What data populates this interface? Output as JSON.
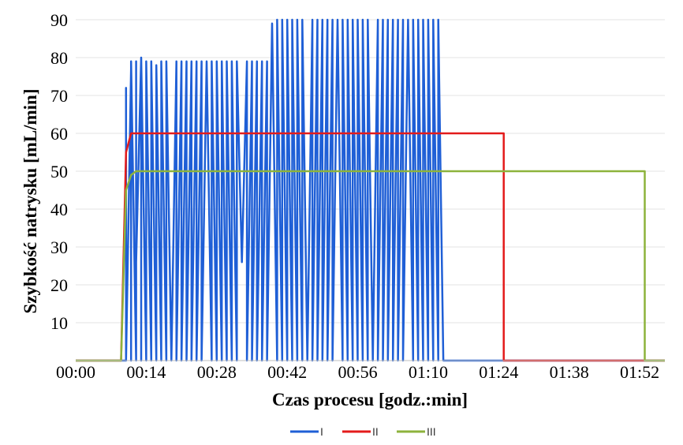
{
  "chart_data": {
    "type": "line",
    "title": "",
    "xlabel": "Czas procesu  [godz.:min]",
    "ylabel": "Szybkość natrysku  [mL/min]",
    "x_unit": "godz.:min",
    "xlim": [
      "00:00",
      "01:57"
    ],
    "ylim": [
      0,
      90
    ],
    "x_ticks": [
      "00:00",
      "00:14",
      "00:28",
      "00:42",
      "00:56",
      "01:10",
      "01:24",
      "01:38",
      "01:52"
    ],
    "y_ticks": [
      "10",
      "20",
      "30",
      "40",
      "50",
      "60",
      "70",
      "80",
      "90"
    ],
    "grid": true,
    "legend_position": "bottom",
    "series": [
      {
        "name": "I",
        "color": "#1f5fd6",
        "pattern": "pulsed",
        "start": "00:10",
        "stop": "01:13",
        "x": [
          "00:00",
          "00:10",
          "00:10",
          "00:10",
          "00:11",
          "00:11",
          "00:11",
          "00:12",
          "00:12",
          "00:12",
          "00:13",
          "00:13",
          "00:13",
          "00:14",
          "00:14",
          "00:15",
          "00:15",
          "00:16",
          "00:16",
          "00:17",
          "00:17",
          "00:18",
          "00:18",
          "00:19",
          "00:20",
          "00:20",
          "00:21",
          "00:21",
          "00:22",
          "00:22",
          "00:23",
          "00:23",
          "00:24",
          "00:24",
          "00:25",
          "00:25",
          "00:26",
          "00:27",
          "00:27",
          "00:28",
          "00:28",
          "00:29",
          "00:29",
          "00:30",
          "00:30",
          "00:31",
          "00:31",
          "00:32",
          "00:32",
          "00:33",
          "00:34",
          "00:34",
          "00:35",
          "00:35",
          "00:36",
          "00:36",
          "00:37",
          "00:37",
          "00:38",
          "00:38",
          "00:39",
          "00:40",
          "00:40",
          "00:41",
          "00:41",
          "00:42",
          "00:42",
          "00:43",
          "00:43",
          "00:44",
          "00:44",
          "00:45",
          "00:45",
          "00:46",
          "00:47",
          "00:47",
          "00:48",
          "00:48",
          "00:49",
          "00:49",
          "00:50",
          "00:50",
          "00:51",
          "00:51",
          "00:52",
          "00:53",
          "00:53",
          "00:54",
          "00:54",
          "00:55",
          "00:55",
          "00:56",
          "00:56",
          "00:57",
          "00:57",
          "00:58",
          "00:58",
          "00:59",
          "01:00",
          "01:00",
          "01:01",
          "01:01",
          "01:02",
          "01:02",
          "01:03",
          "01:03",
          "01:04",
          "01:04",
          "01:05",
          "01:05",
          "01:06",
          "01:07",
          "01:07",
          "01:08",
          "01:08",
          "01:09",
          "01:09",
          "01:10",
          "01:10",
          "01:11",
          "01:11",
          "01:12",
          "01:12",
          "01:13",
          "01:13",
          "01:57"
        ],
        "values": [
          0,
          0,
          72,
          0,
          77,
          0,
          79,
          0,
          79,
          26,
          80,
          0,
          80,
          0,
          79,
          0,
          79,
          0,
          78,
          0,
          79,
          0,
          79,
          0,
          79,
          0,
          79,
          0,
          79,
          0,
          79,
          0,
          79,
          0,
          79,
          0,
          79,
          0,
          79,
          0,
          79,
          0,
          79,
          0,
          79,
          0,
          79,
          0,
          79,
          26,
          79,
          0,
          79,
          0,
          79,
          0,
          79,
          0,
          79,
          0,
          89,
          0,
          90,
          0,
          90,
          0,
          90,
          0,
          90,
          0,
          90,
          0,
          90,
          0,
          90,
          0,
          90,
          0,
          90,
          0,
          90,
          0,
          90,
          0,
          90,
          0,
          90,
          0,
          90,
          0,
          90,
          0,
          90,
          0,
          90,
          0,
          90,
          0,
          90,
          0,
          90,
          0,
          90,
          0,
          90,
          0,
          90,
          0,
          90,
          0,
          90,
          0,
          90,
          0,
          90,
          0,
          90,
          0,
          90,
          0,
          90,
          0,
          90,
          0,
          0,
          0
        ]
      },
      {
        "name": "II",
        "color": "#e31b1b",
        "pattern": "plateau",
        "x": [
          "00:00",
          "00:09",
          "00:10",
          "00:11",
          "00:12",
          "00:30",
          "00:45",
          "01:00",
          "01:15",
          "01:25",
          "01:25",
          "01:57"
        ],
        "values": [
          0,
          0,
          55,
          60,
          60,
          60,
          60,
          60,
          60,
          60,
          0,
          0
        ]
      },
      {
        "name": "III",
        "color": "#8db33c",
        "pattern": "plateau",
        "x": [
          "00:00",
          "00:09",
          "00:10",
          "00:11",
          "00:12",
          "00:30",
          "00:45",
          "01:00",
          "01:15",
          "01:30",
          "01:45",
          "01:53",
          "01:53",
          "01:57"
        ],
        "values": [
          0,
          0,
          45,
          49,
          50,
          50,
          50,
          50,
          50,
          50,
          50,
          50,
          0,
          0
        ]
      }
    ]
  }
}
